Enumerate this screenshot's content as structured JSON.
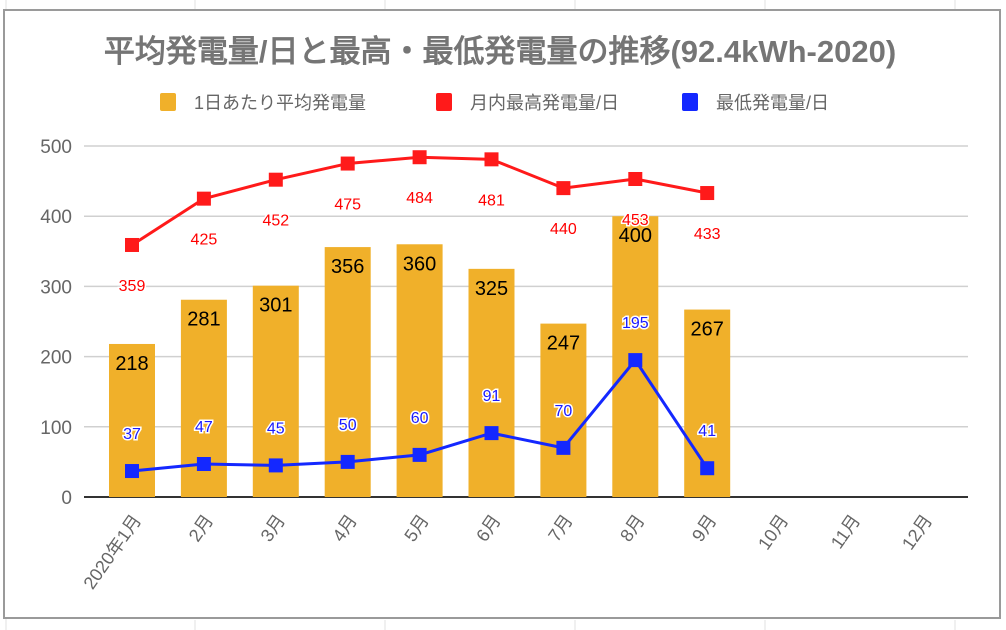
{
  "chart_data": {
    "type": "bar+line",
    "title": "平均発電量/日と最高・最低発電量の推移(92.4kWh-2020)",
    "legend_position": "top",
    "grid": true,
    "ylim": [
      0,
      500
    ],
    "yticks": [
      "0",
      "100",
      "200",
      "300",
      "400",
      "500"
    ],
    "categories": [
      "2020年1月",
      "2月",
      "3月",
      "4月",
      "5月",
      "6月",
      "7月",
      "8月",
      "9月",
      "10月",
      "11月",
      "12月"
    ],
    "series": [
      {
        "name": "1日あたり平均発電量",
        "type": "bar",
        "color": "#f0b02a",
        "label_color": "#000000",
        "values": [
          218,
          281,
          301,
          356,
          360,
          325,
          247,
          400,
          267,
          null,
          null,
          null
        ]
      },
      {
        "name": "月内最高発電量/日",
        "type": "line",
        "color": "#ff1a1a",
        "label_color": "#ff0000",
        "values": [
          359,
          425,
          452,
          475,
          484,
          481,
          440,
          453,
          433,
          null,
          null,
          null
        ]
      },
      {
        "name": "最低発電量/日",
        "type": "line",
        "color": "#1428ff",
        "label_color": "#1a1aff",
        "values": [
          37,
          47,
          45,
          50,
          60,
          91,
          70,
          195,
          41,
          null,
          null,
          null
        ]
      }
    ]
  }
}
